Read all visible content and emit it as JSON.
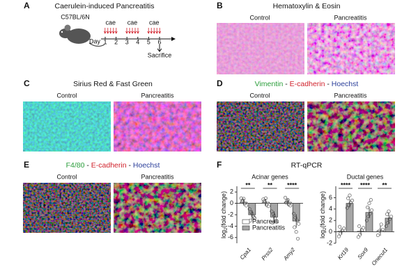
{
  "panel_a": {
    "label": "A",
    "title": "Caerulein-induced Pancreatitis",
    "strain": "C57BL/6N",
    "day_label": "Day",
    "days": [
      "1",
      "2",
      "3",
      "4",
      "5",
      "6"
    ],
    "injections": [
      "cae",
      "cae",
      "cae"
    ],
    "endpoint": "Sacrifice"
  },
  "panel_b": {
    "label": "B",
    "title": "Hematoxylin & Eosin",
    "left": "Control",
    "right": "Pancreatitis"
  },
  "panel_c": {
    "label": "C",
    "title": "Sirius Red & Fast Green",
    "left": "Control",
    "right": "Pancreatitis"
  },
  "panel_d": {
    "label": "D",
    "title_parts": [
      "Vimentin",
      " - ",
      "E-cadherin",
      " - ",
      "Hoechst"
    ],
    "left": "Control",
    "right": "Pancreatitis"
  },
  "panel_e": {
    "label": "E",
    "title_parts": [
      "F4/80",
      " - ",
      "E-cadherin",
      " - ",
      "Hoechst"
    ],
    "left": "Control",
    "right": "Pancreatitis"
  },
  "panel_f": {
    "label": "F",
    "title": "RT-qPCR",
    "y_label": {
      "base": "log",
      "sub": "2",
      "rest": "(fold change)"
    },
    "legend": [
      {
        "name": "Pancreas",
        "color": "#ffffff"
      },
      {
        "name": "Pancreatitis",
        "color": "#a6a6a6"
      }
    ],
    "charts": [
      {
        "title": "Acinar genes",
        "categories": [
          "Cpa1",
          "Prss2",
          "Amy2"
        ],
        "ylim": [
          -7,
          3
        ],
        "yticks": [
          2,
          0,
          -2,
          -4,
          -6
        ],
        "significance": [
          "**",
          "**",
          "****"
        ],
        "series": [
          {
            "values": [
              0.2,
              0.2,
              0.2
            ],
            "errors": [
              0.6,
              0.6,
              0.6
            ],
            "points": [
              [
                0.9,
                0.5,
                0.0,
                -0.4,
                0.3,
                0.8
              ],
              [
                0.7,
                0.2,
                -0.3,
                -0.5,
                0.4,
                0.9
              ],
              [
                1.0,
                0.4,
                -0.2,
                -0.4,
                0.1,
                0.6
              ]
            ]
          },
          {
            "values": [
              -2.0,
              -2.4,
              -3.1
            ],
            "errors": [
              0.8,
              1.0,
              1.2
            ],
            "points": [
              [
                -1.0,
                -1.6,
                -2.2,
                -2.6,
                -3.0,
                -1.8,
                -2.4
              ],
              [
                -1.4,
                -1.9,
                -2.6,
                -3.1,
                -3.4,
                -2.2
              ],
              [
                -1.8,
                -2.5,
                -3.0,
                -3.6,
                -4.2,
                -5.0,
                -6.2
              ]
            ]
          }
        ]
      },
      {
        "title": "Ductal genes",
        "categories": [
          "Krt19",
          "Sox9",
          "Onecut1"
        ],
        "ylim": [
          -2,
          8
        ],
        "yticks": [
          -2,
          0,
          2,
          4,
          6
        ],
        "significance": [
          "****",
          "****",
          "**"
        ],
        "series": [
          {
            "values": [
              0.1,
              0.1,
              0.2
            ],
            "errors": [
              0.5,
              0.6,
              0.9
            ],
            "points": [
              [
                -0.8,
                -0.3,
                0.2,
                0.6,
                0.9
              ],
              [
                -0.9,
                -0.5,
                0.3,
                0.7,
                1.0
              ],
              [
                -0.6,
                0.2,
                1.3,
                0.4
              ]
            ]
          },
          {
            "values": [
              5.0,
              3.4,
              2.4
            ],
            "errors": [
              0.7,
              1.0,
              1.0
            ],
            "points": [
              [
                4.2,
                4.7,
                5.1,
                5.5,
                5.9,
                6.4
              ],
              [
                2.0,
                2.7,
                3.2,
                3.8,
                4.3,
                5.0,
                5.6
              ],
              [
                1.0,
                1.6,
                2.2,
                2.7,
                3.1,
                3.6
              ]
            ]
          }
        ]
      }
    ]
  }
}
